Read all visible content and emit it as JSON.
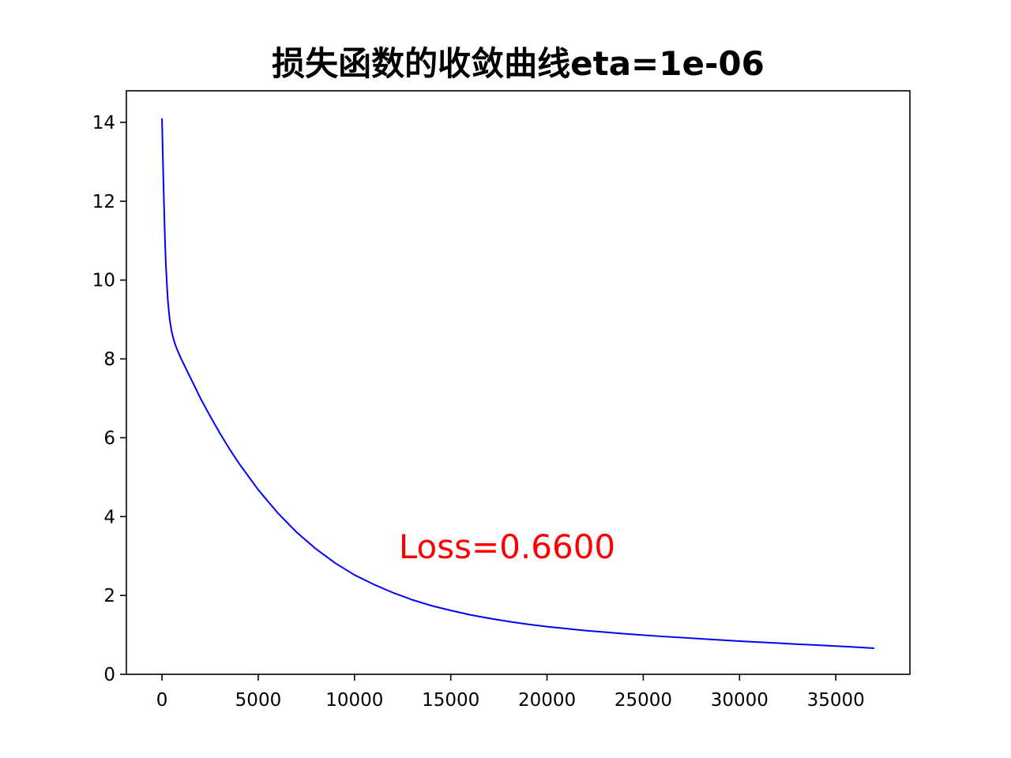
{
  "chart_data": {
    "type": "line",
    "title": "损失函数的收敛曲线eta=1e-06",
    "xlabel": "",
    "ylabel": "",
    "xlim": [
      -1850,
      38850
    ],
    "ylim": [
      0,
      14.8
    ],
    "xticks": [
      0,
      5000,
      10000,
      15000,
      20000,
      25000,
      30000,
      35000
    ],
    "yticks": [
      0,
      2,
      4,
      6,
      8,
      10,
      12,
      14
    ],
    "xtick_labels": [
      "0",
      "5000",
      "10000",
      "15000",
      "20000",
      "25000",
      "30000",
      "35000"
    ],
    "ytick_labels": [
      "0",
      "2",
      "4",
      "6",
      "8",
      "10",
      "12",
      "14"
    ],
    "grid": false,
    "legend": "none",
    "series": [
      {
        "color": "#0000ff",
        "x": [
          0,
          50,
          100,
          150,
          200,
          300,
          400,
          500,
          600,
          700,
          800,
          1000,
          1200,
          1500,
          2000,
          2500,
          3000,
          3500,
          4000,
          5000,
          6000,
          7000,
          8000,
          9000,
          10000,
          11000,
          12000,
          13000,
          14000,
          15000,
          16000,
          17000,
          18000,
          19000,
          20000,
          22000,
          24000,
          26000,
          28000,
          30000,
          32000,
          34000,
          36000,
          37000
        ],
        "y": [
          14.1,
          13.0,
          12.0,
          11.1,
          10.4,
          9.5,
          9.0,
          8.7,
          8.5,
          8.35,
          8.22,
          8.0,
          7.8,
          7.5,
          7.0,
          6.55,
          6.12,
          5.72,
          5.35,
          4.68,
          4.1,
          3.6,
          3.18,
          2.82,
          2.52,
          2.28,
          2.07,
          1.89,
          1.74,
          1.62,
          1.51,
          1.42,
          1.34,
          1.27,
          1.21,
          1.11,
          1.03,
          0.96,
          0.9,
          0.84,
          0.79,
          0.74,
          0.69,
          0.66
        ]
      }
    ],
    "annotations": [
      {
        "text": "Loss=0.6600",
        "x": 12300,
        "y": 3.3,
        "color": "#ff0000"
      }
    ]
  }
}
